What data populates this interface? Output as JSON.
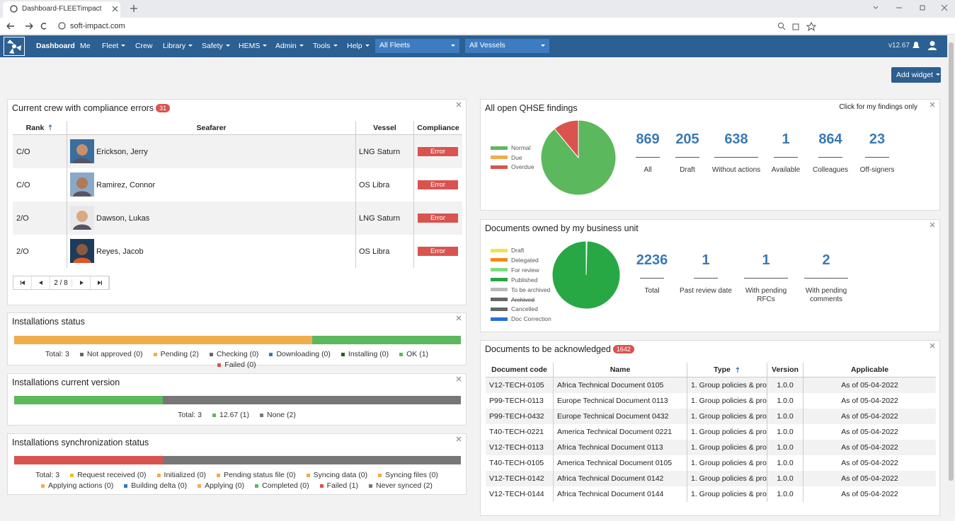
{
  "browser": {
    "tab_title": "Dashboard-FLEETimpact",
    "url": "soft-impact.com"
  },
  "nav": {
    "items": [
      "Dashboard",
      "Me",
      "Fleet",
      "Crew",
      "Library",
      "Safety",
      "HEMS",
      "Admin",
      "Tools",
      "Help"
    ],
    "fleet_select": "All Fleets",
    "vessel_select": "All Vessels",
    "version": "v12.67"
  },
  "add_widget": "Add widget",
  "crew": {
    "title": "Current crew with compliance errors",
    "badge": "31",
    "columns": [
      "Rank",
      "Seafarer",
      "Vessel",
      "Compliance"
    ],
    "rows": [
      [
        "C/O",
        "Erickson, Jerry",
        "LNG Saturn",
        "Error"
      ],
      [
        "C/O",
        "Ramirez, Connor",
        "OS Libra",
        "Error"
      ],
      [
        "2/O",
        "Dawson, Lukas",
        "LNG Saturn",
        "Error"
      ],
      [
        "2/O",
        "Reyes, Jacob",
        "OS Libra",
        "Error"
      ]
    ],
    "pager": "2 / 8"
  },
  "installations_status": {
    "title": "Installations status",
    "total": "Total: 3",
    "items": [
      {
        "label": "Not approved (0)",
        "value": 0,
        "color": "#666666"
      },
      {
        "label": "Pending (2)",
        "value": 2,
        "color": "#f0ad4e"
      },
      {
        "label": "Checking (0)",
        "value": 0,
        "color": "#666666"
      },
      {
        "label": "Downloading (0)",
        "value": 0,
        "color": "#337ab7"
      },
      {
        "label": "Installing (0)",
        "value": 0,
        "color": "#2d5a27"
      },
      {
        "label": "OK (1)",
        "value": 1,
        "color": "#5cb85c"
      },
      {
        "label": "Failed (0)",
        "value": 0,
        "color": "#d9534f"
      }
    ]
  },
  "installations_version": {
    "title": "Installations current version",
    "total": "Total: 3",
    "items": [
      {
        "label": "12.67 (1)",
        "value": 1,
        "color": "#5cb85c"
      },
      {
        "label": "None (2)",
        "value": 2,
        "color": "#777777"
      }
    ]
  },
  "sync": {
    "title": "Installations synchronization status",
    "total": "Total: 3",
    "items": [
      {
        "label": "Request received (0)",
        "value": 0,
        "color": "#e6c229"
      },
      {
        "label": "Initialized (0)",
        "value": 0,
        "color": "#f0ad4e"
      },
      {
        "label": "Pending status file (0)",
        "value": 0,
        "color": "#f0ad4e"
      },
      {
        "label": "Syncing data (0)",
        "value": 0,
        "color": "#f0ad4e"
      },
      {
        "label": "Syncing files (0)",
        "value": 0,
        "color": "#f0ad4e"
      },
      {
        "label": "Applying actions (0)",
        "value": 0,
        "color": "#f0ad4e"
      },
      {
        "label": "Building delta (0)",
        "value": 0,
        "color": "#337ab7"
      },
      {
        "label": "Applying (0)",
        "value": 0,
        "color": "#f0ad4e"
      },
      {
        "label": "Completed (0)",
        "value": 0,
        "color": "#5cb85c"
      },
      {
        "label": "Failed (1)",
        "value": 1,
        "color": "#d9534f"
      },
      {
        "label": "Never synced (2)",
        "value": 2,
        "color": "#777777"
      }
    ]
  },
  "qhse": {
    "title": "All open QHSE findings",
    "link": "Click for my findings only",
    "legend": [
      {
        "label": "Normal",
        "value": 89,
        "color": "#5cb85c"
      },
      {
        "label": "Due",
        "value": 0,
        "color": "#f0ad4e"
      },
      {
        "label": "Overdue",
        "value": 11,
        "color": "#d9534f"
      }
    ],
    "stats": [
      {
        "value": 869,
        "label": "All"
      },
      {
        "value": 205,
        "label": "Draft"
      },
      {
        "value": 638,
        "label": "Without actions"
      },
      {
        "value": 1,
        "label": "Available"
      },
      {
        "value": 864,
        "label": "Colleagues"
      },
      {
        "value": 23,
        "label": "Off-signers"
      }
    ]
  },
  "docs_owned": {
    "title": "Documents owned by my business unit",
    "legend": [
      {
        "label": "Draft",
        "value": 0.4,
        "color": "#f5e04a"
      },
      {
        "label": "Delegated",
        "value": 0,
        "color": "#f0891a"
      },
      {
        "label": "For review",
        "value": 0,
        "color": "#7fdc7f"
      },
      {
        "label": "Published",
        "value": 99.6,
        "color": "#28a745"
      },
      {
        "label": "To be archived",
        "value": 0,
        "color": "#bbbbbb"
      },
      {
        "label": "Archived",
        "value": 0,
        "color": "#666666"
      },
      {
        "label": "Cancelled",
        "value": 0,
        "color": "#666666"
      },
      {
        "label": "Doc Correction",
        "value": 0,
        "color": "#2a6fdb"
      }
    ],
    "stats": [
      {
        "value": 2236,
        "label": "Total"
      },
      {
        "value": 1,
        "label": "Past review date"
      },
      {
        "value": 1,
        "label": "With pending RFCs"
      },
      {
        "value": 2,
        "label": "With pending comments"
      }
    ]
  },
  "docs_ack": {
    "title": "Documents to be acknowledged",
    "badge": "1642",
    "columns": [
      "Document code",
      "Name",
      "Type",
      "Version",
      "Applicable"
    ],
    "rows": [
      [
        "V12-TECH-0105",
        "Africa Technical Document 0105",
        "1. Group policies & pro...",
        "1.0.0",
        "As of 05-04-2022"
      ],
      [
        "P99-TECH-0113",
        "Europe Technical Document 0113",
        "1. Group policies & pro...",
        "1.0.0",
        "As of 05-04-2022"
      ],
      [
        "P99-TECH-0432",
        "Europe Technical Document 0432",
        "1. Group policies & pro...",
        "1.0.0",
        "As of 05-04-2022"
      ],
      [
        "T40-TECH-0221",
        "America Technical Document 0221",
        "1. Group policies & pro...",
        "1.0.0",
        "As of 05-04-2022"
      ],
      [
        "V12-TECH-0113",
        "Africa Technical Document 0113",
        "1. Group policies & pro...",
        "1.0.0",
        "As of 05-04-2022"
      ],
      [
        "T40-TECH-0105",
        "America Technical Document 0105",
        "1. Group policies & pro...",
        "1.0.0",
        "As of 05-04-2022"
      ],
      [
        "V12-TECH-0142",
        "Africa Technical Document 0142",
        "1. Group policies & pro...",
        "1.0.0",
        "As of 05-04-2022"
      ],
      [
        "V12-TECH-0144",
        "Africa Technical Document 0144",
        "1. Group policies & pro...",
        "1.0.0",
        "As of 05-04-2022"
      ]
    ]
  }
}
